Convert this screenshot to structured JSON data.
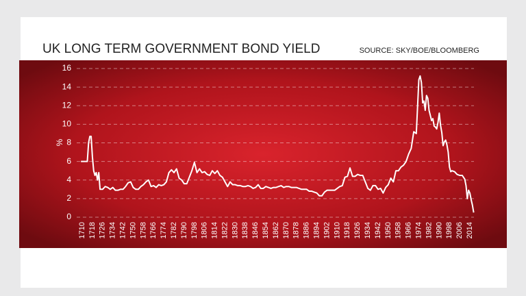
{
  "chart_data": {
    "type": "line",
    "title": "UK LONG TERM GOVERNMENT BOND YIELD",
    "source": "SOURCE: SKY/BOE/BLOOMBERG",
    "y_label": "%",
    "color": "#ffffff",
    "grid": true,
    "xlim": [
      1700,
      2020
    ],
    "ylim": [
      0,
      16
    ],
    "yticks": [
      0,
      2,
      4,
      6,
      8,
      10,
      12,
      14,
      16
    ],
    "xticks": [
      1710,
      1718,
      1726,
      1734,
      1742,
      1750,
      1758,
      1766,
      1774,
      1782,
      1790,
      1798,
      1806,
      1814,
      1822,
      1830,
      1838,
      1846,
      1854,
      1862,
      1870,
      1878,
      1886,
      1894,
      1902,
      1910,
      1918,
      1926,
      1934,
      1942,
      1950,
      1958,
      1966,
      1974,
      1982,
      1990,
      1998,
      2006,
      2014
    ],
    "x": [
      1709,
      1714,
      1715,
      1716,
      1717,
      1718,
      1719,
      1720,
      1721,
      1722,
      1723,
      1724,
      1726,
      1728,
      1730,
      1732,
      1734,
      1736,
      1738,
      1740,
      1742,
      1744,
      1746,
      1748,
      1750,
      1752,
      1754,
      1756,
      1758,
      1760,
      1762,
      1764,
      1766,
      1768,
      1770,
      1772,
      1774,
      1776,
      1778,
      1780,
      1782,
      1784,
      1786,
      1788,
      1790,
      1792,
      1794,
      1796,
      1798,
      1800,
      1802,
      1804,
      1806,
      1808,
      1810,
      1812,
      1814,
      1816,
      1818,
      1820,
      1822,
      1824,
      1826,
      1828,
      1830,
      1832,
      1834,
      1836,
      1838,
      1840,
      1842,
      1844,
      1846,
      1848,
      1850,
      1852,
      1854,
      1856,
      1858,
      1860,
      1862,
      1864,
      1866,
      1868,
      1870,
      1872,
      1874,
      1876,
      1878,
      1880,
      1882,
      1884,
      1886,
      1888,
      1890,
      1892,
      1894,
      1896,
      1898,
      1900,
      1902,
      1904,
      1906,
      1908,
      1910,
      1912,
      1914,
      1916,
      1918,
      1920,
      1922,
      1924,
      1926,
      1928,
      1930,
      1932,
      1934,
      1936,
      1938,
      1940,
      1942,
      1944,
      1946,
      1948,
      1950,
      1952,
      1954,
      1956,
      1958,
      1960,
      1962,
      1964,
      1966,
      1968,
      1970,
      1972,
      1974,
      1975,
      1976,
      1977,
      1978,
      1979,
      1980,
      1981,
      1982,
      1984,
      1985,
      1986,
      1987,
      1988,
      1989,
      1990,
      1991,
      1992,
      1993,
      1994,
      1995,
      1996,
      1997,
      1998,
      1999,
      2000,
      2002,
      2004,
      2006,
      2008,
      2010,
      2011,
      2012,
      2013,
      2014,
      2015,
      2016,
      2017
    ],
    "values": [
      6,
      6,
      8,
      8.7,
      8.7,
      6.5,
      5,
      4.5,
      4.8,
      4,
      4.8,
      3,
      3,
      3.3,
      3.2,
      3,
      3.2,
      2.9,
      2.9,
      3,
      3,
      3.3,
      3.7,
      3.8,
      3.2,
      3,
      3,
      3.3,
      3.5,
      3.8,
      4,
      3.3,
      3.4,
      3.2,
      3.5,
      3.4,
      3.5,
      3.8,
      4.8,
      5.1,
      4.8,
      5.2,
      4.2,
      4,
      3.6,
      3.6,
      4.3,
      5,
      5.9,
      4.8,
      5.2,
      4.8,
      4.9,
      4.6,
      4.5,
      5,
      4.7,
      5,
      4.5,
      4.3,
      3.8,
      3.3,
      3.8,
      3.5,
      3.5,
      3.4,
      3.4,
      3.3,
      3.3,
      3.4,
      3.3,
      3.1,
      3.2,
      3.5,
      3.1,
      3.1,
      3.3,
      3.2,
      3.1,
      3.2,
      3.2,
      3.3,
      3.4,
      3.2,
      3.3,
      3.3,
      3.2,
      3.2,
      3.2,
      3.1,
      3,
      3,
      3,
      2.8,
      2.8,
      2.7,
      2.6,
      2.3,
      2.3,
      2.7,
      2.9,
      2.9,
      2.9,
      2.9,
      3.1,
      3.3,
      3.4,
      4.3,
      4.4,
      5.3,
      4.4,
      4.4,
      4.6,
      4.5,
      4.5,
      3.8,
      3.1,
      2.9,
      3.4,
      3.4,
      3,
      3.1,
      2.6,
      3.2,
      3.5,
      4.2,
      3.8,
      5,
      5,
      5.4,
      5.6,
      6,
      6.8,
      7.4,
      9.2,
      9,
      14.8,
      15.2,
      14.5,
      12.3,
      12.5,
      11.5,
      13.1,
      12.8,
      11.5,
      10.4,
      10.6,
      9.8,
      9.7,
      9.5,
      10.2,
      11.2,
      9.9,
      9.1,
      7.7,
      8.1,
      8.3,
      7.8,
      7,
      5.4,
      4.9,
      5,
      4.9,
      4.6,
      4.5,
      4.5,
      4.1,
      3.4,
      2,
      2.9,
      2.6,
      1.9,
      1.3,
      0.5
    ]
  }
}
